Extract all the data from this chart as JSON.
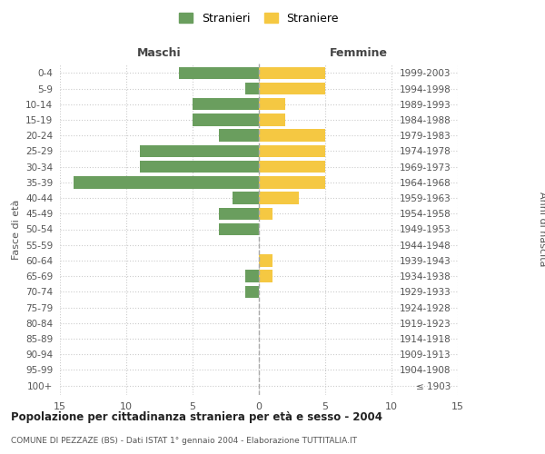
{
  "age_groups": [
    "100+",
    "95-99",
    "90-94",
    "85-89",
    "80-84",
    "75-79",
    "70-74",
    "65-69",
    "60-64",
    "55-59",
    "50-54",
    "45-49",
    "40-44",
    "35-39",
    "30-34",
    "25-29",
    "20-24",
    "15-19",
    "10-14",
    "5-9",
    "0-4"
  ],
  "birth_years": [
    "≤ 1903",
    "1904-1908",
    "1909-1913",
    "1914-1918",
    "1919-1923",
    "1924-1928",
    "1929-1933",
    "1934-1938",
    "1939-1943",
    "1944-1948",
    "1949-1953",
    "1954-1958",
    "1959-1963",
    "1964-1968",
    "1969-1973",
    "1974-1978",
    "1979-1983",
    "1984-1988",
    "1989-1993",
    "1994-1998",
    "1999-2003"
  ],
  "males": [
    0,
    0,
    0,
    0,
    0,
    0,
    1,
    1,
    0,
    0,
    3,
    3,
    2,
    14,
    9,
    9,
    3,
    5,
    5,
    1,
    6
  ],
  "females": [
    0,
    0,
    0,
    0,
    0,
    0,
    0,
    1,
    1,
    0,
    0,
    1,
    3,
    5,
    5,
    5,
    5,
    2,
    2,
    5,
    5
  ],
  "color_males": "#6a9e5e",
  "color_females": "#f5c842",
  "title_main": "Popolazione per cittadinanza straniera per età e sesso - 2004",
  "title_sub": "COMUNE DI PEZZAZE (BS) - Dati ISTAT 1° gennaio 2004 - Elaborazione TUTTITALIA.IT",
  "label_maschi": "Maschi",
  "label_femmine": "Femmine",
  "label_stranieri": "Stranieri",
  "label_straniere": "Straniere",
  "ylabel_left": "Fasce di età",
  "ylabel_right": "Anni di nascita",
  "xlim": 15,
  "bg_color": "#ffffff",
  "grid_color": "#cccccc",
  "bar_height": 0.78
}
